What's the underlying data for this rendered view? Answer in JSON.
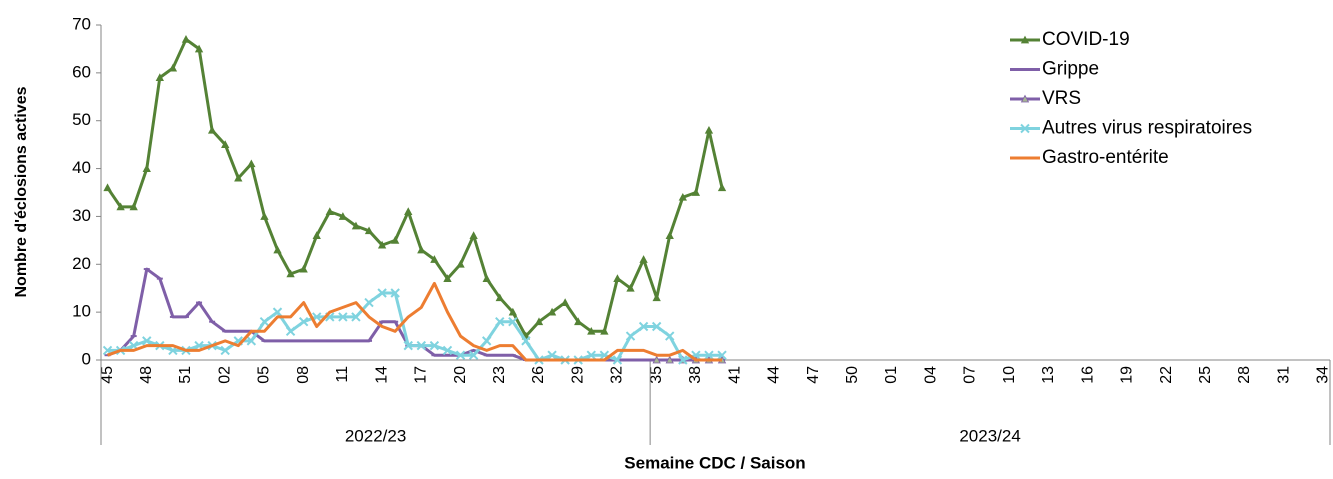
{
  "chart_data": {
    "type": "line",
    "y_label": "Nombre d'éclosions actives",
    "x_label": "Semaine CDC / Saison",
    "categories": [
      "45",
      null,
      null,
      "48",
      null,
      null,
      "51",
      null,
      null,
      "02",
      null,
      null,
      "05",
      null,
      null,
      "08",
      null,
      null,
      "11",
      null,
      null,
      "14",
      null,
      null,
      "17",
      null,
      null,
      "20",
      null,
      null,
      "23",
      null,
      null,
      "26",
      null,
      null,
      "29",
      null,
      null,
      "32",
      null,
      null,
      "35",
      null,
      null,
      "38",
      null,
      null,
      "41",
      null,
      null,
      "44",
      null,
      null,
      "47",
      null,
      null,
      "50",
      null,
      null,
      "01",
      null,
      null,
      "04",
      null,
      null,
      "07",
      null,
      null,
      "10",
      null,
      null,
      "13",
      null,
      null,
      "16",
      null,
      null,
      "19",
      null,
      null,
      "22",
      null,
      null,
      "25",
      null,
      null,
      "28",
      null,
      null,
      "31",
      null,
      null,
      "34"
    ],
    "seasons": [
      {
        "label": "2022/23",
        "start": "45"
      },
      {
        "label": "2023/24",
        "start": "35"
      }
    ],
    "series": [
      {
        "name": "COVID-19",
        "color": "#548235",
        "marker": "triangle",
        "values": [
          36,
          32,
          32,
          40,
          59,
          61,
          67,
          65,
          48,
          45,
          38,
          41,
          30,
          23,
          18,
          19,
          26,
          31,
          30,
          28,
          27,
          24,
          25,
          31,
          23,
          21,
          17,
          20,
          26,
          17,
          13,
          10,
          5,
          8,
          10,
          12,
          8,
          6,
          6,
          17,
          15,
          21,
          13,
          26,
          34,
          35,
          48,
          36,
          null,
          null,
          null,
          null,
          null,
          null,
          null,
          null,
          null,
          null,
          null,
          null,
          null,
          null,
          null,
          null,
          null,
          null,
          null,
          null,
          null,
          null,
          null,
          null,
          null,
          null,
          null,
          null,
          null,
          null,
          null,
          null,
          null,
          null,
          null,
          null,
          null,
          null,
          null,
          null,
          null,
          null,
          null,
          null,
          null,
          null
        ]
      },
      {
        "name": "Grippe",
        "color": "#7f5fa8",
        "marker": "dash",
        "values": [
          1,
          2,
          5,
          19,
          17,
          9,
          9,
          12,
          8,
          6,
          6,
          6,
          4,
          4,
          4,
          4,
          4,
          4,
          4,
          4,
          4,
          8,
          8,
          3,
          3,
          1,
          1,
          1,
          2,
          1,
          1,
          1,
          0,
          0,
          0,
          0,
          0,
          0,
          0,
          0,
          0,
          0,
          0,
          0,
          0,
          0,
          0,
          0,
          null,
          null,
          null,
          null,
          null,
          null,
          null,
          null,
          null,
          null,
          null,
          null,
          null,
          null,
          null,
          null,
          null,
          null,
          null,
          null,
          null,
          null,
          null,
          null,
          null,
          null,
          null,
          null,
          null,
          null,
          null,
          null,
          null,
          null,
          null,
          null,
          null,
          null,
          null,
          null,
          null,
          null,
          null,
          null,
          null,
          null
        ]
      },
      {
        "name": "VRS",
        "color": "#7f5fa8",
        "marker": "triangle",
        "marker_color": "#a5b592",
        "values": [
          null,
          null,
          null,
          null,
          null,
          null,
          null,
          null,
          null,
          null,
          null,
          null,
          null,
          null,
          null,
          null,
          null,
          null,
          null,
          null,
          null,
          null,
          null,
          null,
          null,
          null,
          null,
          null,
          null,
          null,
          null,
          null,
          null,
          null,
          null,
          null,
          null,
          null,
          null,
          null,
          null,
          null,
          0,
          0,
          0,
          0,
          0,
          0,
          null,
          null,
          null,
          null,
          null,
          null,
          null,
          null,
          null,
          null,
          null,
          null,
          null,
          null,
          null,
          null,
          null,
          null,
          null,
          null,
          null,
          null,
          null,
          null,
          null,
          null,
          null,
          null,
          null,
          null,
          null,
          null,
          null,
          null,
          null,
          null,
          null,
          null,
          null,
          null,
          null,
          null,
          null,
          null,
          null,
          null
        ]
      },
      {
        "name": "Autres virus respiratoires",
        "color": "#7fd3df",
        "marker": "x",
        "values": [
          2,
          2,
          3,
          4,
          3,
          2,
          2,
          3,
          3,
          2,
          4,
          4,
          8,
          10,
          6,
          8,
          9,
          9,
          9,
          9,
          12,
          14,
          14,
          3,
          3,
          3,
          2,
          1,
          1,
          4,
          8,
          8,
          4,
          0,
          1,
          0,
          0,
          1,
          1,
          0,
          5,
          7,
          7,
          5,
          0,
          1,
          1,
          1,
          null,
          null,
          null,
          null,
          null,
          null,
          null,
          null,
          null,
          null,
          null,
          null,
          null,
          null,
          null,
          null,
          null,
          null,
          null,
          null,
          null,
          null,
          null,
          null,
          null,
          null,
          null,
          null,
          null,
          null,
          null,
          null,
          null,
          null,
          null,
          null,
          null,
          null,
          null,
          null,
          null,
          null,
          null,
          null,
          null,
          null
        ]
      },
      {
        "name": "Gastro-entérite",
        "color": "#ed7d31",
        "marker": "none",
        "values": [
          1,
          2,
          2,
          3,
          3,
          3,
          2,
          2,
          3,
          4,
          3,
          6,
          6,
          9,
          9,
          12,
          7,
          10,
          11,
          12,
          9,
          7,
          6,
          9,
          11,
          16,
          10,
          5,
          3,
          2,
          3,
          3,
          0,
          0,
          0,
          0,
          0,
          0,
          0,
          2,
          2,
          2,
          1,
          1,
          2,
          0,
          0,
          0,
          null,
          null,
          null,
          null,
          null,
          null,
          null,
          null,
          null,
          null,
          null,
          null,
          null,
          null,
          null,
          null,
          null,
          null,
          null,
          null,
          null,
          null,
          null,
          null,
          null,
          null,
          null,
          null,
          null,
          null,
          null,
          null,
          null,
          null,
          null,
          null,
          null,
          null,
          null,
          null,
          null,
          null,
          null,
          null,
          null,
          null
        ]
      }
    ],
    "ylim": [
      0,
      70
    ],
    "yticks": [
      0,
      10,
      20,
      30,
      40,
      50,
      60,
      70
    ],
    "grid": false,
    "legend": "top-right"
  }
}
